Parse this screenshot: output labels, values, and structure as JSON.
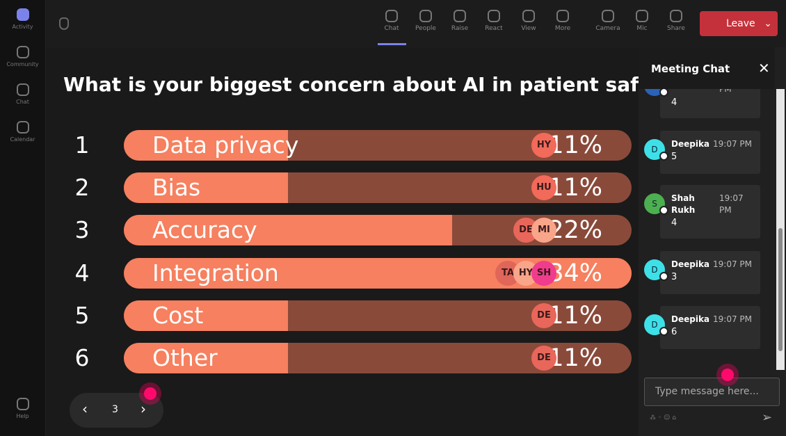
{
  "sidebar": [
    "Activity",
    "Community",
    "Chat",
    "Calendar",
    "Help"
  ],
  "toolbar": [
    "Chat",
    "People",
    "Raise",
    "React",
    "View",
    "More",
    "Camera",
    "Mic",
    "Share"
  ],
  "leave": "Leave",
  "poll": {
    "question": "What is your biggest concern about AI in patient safety?",
    "options": [
      {
        "number": "1",
        "label": "Data privacy",
        "value": 11,
        "value_label": "11%",
        "voters": [
          "HY"
        ]
      },
      {
        "number": "2",
        "label": "Bias",
        "value": 11,
        "value_label": "11%",
        "voters": [
          "HU"
        ]
      },
      {
        "number": "3",
        "label": "Accuracy",
        "value": 22,
        "value_label": "22%",
        "voters": [
          "DE",
          "MI"
        ]
      },
      {
        "number": "4",
        "label": "Integration",
        "value": 34,
        "value_label": "34%",
        "voters": [
          "TA",
          "HY",
          "SH"
        ]
      },
      {
        "number": "5",
        "label": "Cost",
        "value": 11,
        "value_label": "11%",
        "voters": [
          "DE"
        ]
      },
      {
        "number": "6",
        "label": "Other",
        "value": 11,
        "value_label": "11%",
        "voters": [
          "DE"
        ]
      }
    ],
    "page": "3"
  },
  "chat": {
    "title": "Meeting Chat",
    "messages": [
      {
        "time": "PM",
        "text": "4"
      },
      {
        "avatar": "D",
        "name": "Deepika",
        "time": "19:07 PM",
        "text": "5"
      },
      {
        "avatar": "S",
        "name": "Shah Rukh",
        "time": "19:07 PM",
        "text": "4"
      },
      {
        "avatar": "D",
        "name": "Deepika",
        "time": "19:07 PM",
        "text": "3"
      },
      {
        "avatar": "D",
        "name": "Deepika",
        "time": "19:07 PM",
        "text": "6"
      }
    ],
    "placeholder": "Type message here..."
  }
}
